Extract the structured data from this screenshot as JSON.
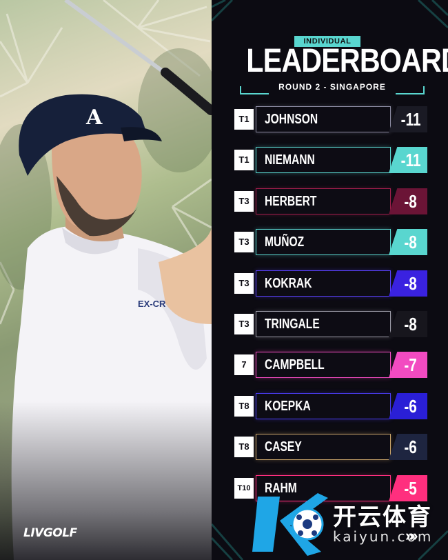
{
  "header": {
    "tag": "INDIVIDUAL",
    "title": "LEADERBOARD",
    "subtitle": "ROUND 2 - SINGAPORE"
  },
  "brand": {
    "logo_text": "LIVGOLF"
  },
  "colors": {
    "background": "#0c0b12",
    "teal": "#59d6cf",
    "maroon": "#6b1436",
    "purple_blue": "#3a22e0",
    "magenta": "#f24bc1",
    "hot_pink": "#ff2f7e",
    "navy": "#1e2540",
    "dark": "#17161d"
  },
  "leaderboard": [
    {
      "position": "T1",
      "player": "JOHNSON",
      "score": "-11",
      "color": "#1a1a24",
      "border": "#8a8aa0"
    },
    {
      "position": "T1",
      "player": "NIEMANN",
      "score": "-11",
      "color": "#59d6cf",
      "border": "#59d6cf"
    },
    {
      "position": "T3",
      "player": "HERBERT",
      "score": "-8",
      "color": "#6b1436",
      "border": "#a01e4c"
    },
    {
      "position": "T3",
      "player": "MUÑOZ",
      "score": "-8",
      "color": "#59d6cf",
      "border": "#59d6cf"
    },
    {
      "position": "T3",
      "player": "KOKRAK",
      "score": "-8",
      "color": "#3a22e0",
      "border": "#5a42ff"
    },
    {
      "position": "T3",
      "player": "TRINGALE",
      "score": "-8",
      "color": "#17161d",
      "border": "#9a9aa5"
    },
    {
      "position": "7",
      "player": "CAMPBELL",
      "score": "-7",
      "color": "#f24bc1",
      "border": "#f24bc1"
    },
    {
      "position": "T8",
      "player": "KOEPKA",
      "score": "-6",
      "color": "#2a1fd6",
      "border": "#4a3cf0"
    },
    {
      "position": "T8",
      "player": "CASEY",
      "score": "-6",
      "color": "#1e2540",
      "border": "#c8a46a"
    },
    {
      "position": "T10",
      "player": "RAHM",
      "score": "-5",
      "color": "#ff2f7e",
      "border": "#ff2f7e"
    }
  ],
  "watermark": {
    "chinese": "开云体育",
    "latin": "kaiyun.com",
    "arrows": "»»"
  }
}
